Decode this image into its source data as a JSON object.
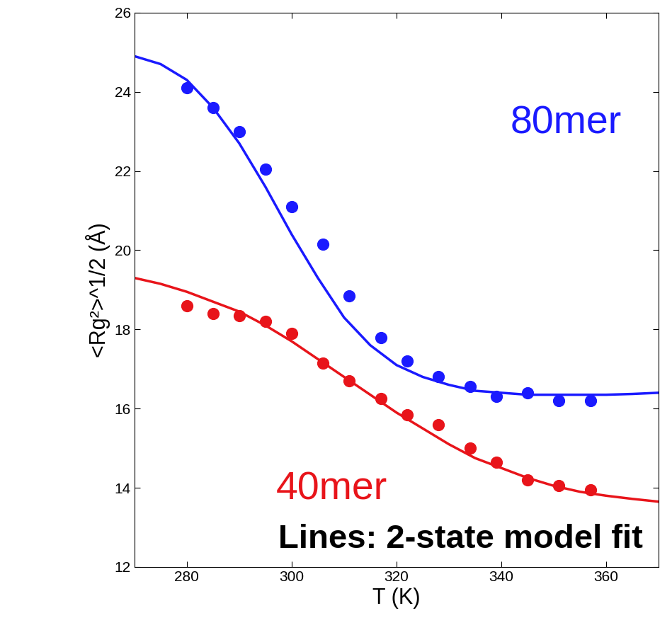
{
  "chart_data": {
    "type": "scatter",
    "x_label": "T (K)",
    "y_label": "<Rg²>^1/2 (Å)",
    "annotations": [
      {
        "text": "Lines: 2-state model fit",
        "color": "#000000"
      }
    ],
    "xlim": [
      270,
      370
    ],
    "xticks": [
      280,
      300,
      320,
      340,
      360
    ],
    "ylim": [
      12,
      26
    ],
    "yticks": [
      12,
      14,
      16,
      18,
      20,
      22,
      24,
      26
    ],
    "series": [
      {
        "name": "80mer",
        "type": "scatter",
        "marker": "o",
        "color": "#1a1aff",
        "x": [
          280,
          285,
          290,
          295,
          300,
          306,
          311,
          317,
          322,
          328,
          334,
          339,
          345,
          351,
          357
        ],
        "values": [
          24.1,
          23.6,
          23.0,
          22.05,
          21.1,
          20.15,
          18.85,
          17.8,
          17.2,
          16.8,
          16.55,
          16.3,
          16.4,
          16.2,
          16.2
        ]
      },
      {
        "type": "line",
        "line_style": "solid",
        "color": "#1a1aff",
        "x": [
          270,
          275,
          280,
          285,
          290,
          295,
          300,
          305,
          310,
          315,
          320,
          325,
          330,
          335,
          340,
          345,
          350,
          355,
          360,
          365,
          370
        ],
        "values": [
          24.9,
          24.7,
          24.3,
          23.6,
          22.7,
          21.6,
          20.4,
          19.3,
          18.3,
          17.6,
          17.1,
          16.8,
          16.6,
          16.45,
          16.4,
          16.35,
          16.35,
          16.35,
          16.35,
          16.37,
          16.4
        ]
      },
      {
        "name": "40mer",
        "type": "scatter",
        "marker": "o",
        "color": "#e8141a",
        "x": [
          280,
          285,
          290,
          295,
          300,
          306,
          311,
          317,
          322,
          328,
          334,
          339,
          345,
          351,
          357
        ],
        "values": [
          18.6,
          18.4,
          18.35,
          18.2,
          17.9,
          17.15,
          16.7,
          16.25,
          15.85,
          15.6,
          15.0,
          14.65,
          14.2,
          14.05,
          13.95
        ]
      },
      {
        "type": "line",
        "line_style": "solid",
        "color": "#e8141a",
        "x": [
          270,
          275,
          280,
          285,
          290,
          295,
          300,
          305,
          310,
          315,
          320,
          325,
          330,
          335,
          340,
          345,
          350,
          355,
          360,
          365,
          370
        ],
        "values": [
          19.3,
          19.15,
          18.95,
          18.7,
          18.45,
          18.1,
          17.7,
          17.25,
          16.8,
          16.35,
          15.9,
          15.5,
          15.1,
          14.75,
          14.5,
          14.25,
          14.05,
          13.9,
          13.8,
          13.72,
          13.65
        ]
      }
    ]
  }
}
